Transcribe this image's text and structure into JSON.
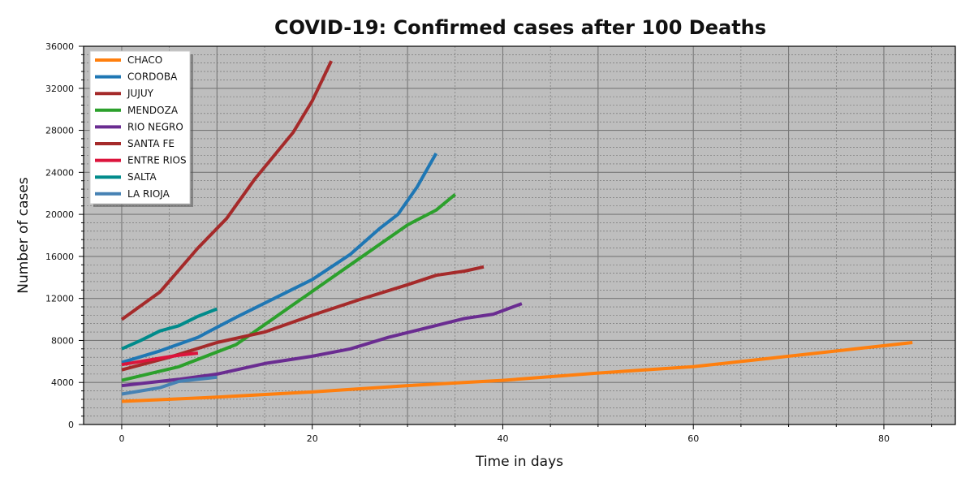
{
  "chart_data": {
    "type": "line",
    "title": "COVID-19: Confirmed cases after 100 Deaths",
    "xlabel": "Time in days",
    "ylabel": "Number of cases",
    "xlim": [
      -4,
      87.5
    ],
    "ylim": [
      0,
      36000
    ],
    "xticks": [
      0,
      20,
      40,
      60,
      80
    ],
    "yticks": [
      0,
      4000,
      8000,
      12000,
      16000,
      20000,
      24000,
      28000,
      32000,
      36000
    ],
    "grid": true,
    "legend_position": "top-left",
    "background": "#bebebe",
    "series": [
      {
        "name": "CHACO",
        "color": "#ff7f0e",
        "x": [
          0,
          10,
          20,
          30,
          40,
          50,
          60,
          70,
          78,
          83
        ],
        "y": [
          2200,
          2600,
          3100,
          3700,
          4200,
          4900,
          5500,
          6500,
          7300,
          7800
        ]
      },
      {
        "name": "CORDOBA",
        "color": "#1f77b4",
        "x": [
          0,
          4,
          8,
          12,
          16,
          20,
          24,
          27,
          29,
          31,
          33
        ],
        "y": [
          5900,
          7000,
          8300,
          10200,
          12000,
          13800,
          16200,
          18600,
          20000,
          22600,
          25800
        ]
      },
      {
        "name": "JUJUY",
        "color": "#a52a2a",
        "x": [
          0,
          4,
          8,
          11,
          14,
          16,
          18,
          20,
          22
        ],
        "y": [
          10000,
          12600,
          16800,
          19600,
          23400,
          25600,
          27800,
          30800,
          34600
        ]
      },
      {
        "name": "MENDOZA",
        "color": "#2ca02c",
        "x": [
          0,
          6,
          12,
          18,
          24,
          30,
          33,
          35
        ],
        "y": [
          4200,
          5500,
          7600,
          11400,
          15200,
          19000,
          20400,
          21900
        ]
      },
      {
        "name": "RIO NEGRO",
        "color": "#6a2c91",
        "x": [
          0,
          6,
          10,
          15,
          20,
          24,
          28,
          32,
          36,
          39,
          42
        ],
        "y": [
          3700,
          4300,
          4800,
          5800,
          6500,
          7200,
          8300,
          9200,
          10100,
          10500,
          11500
        ]
      },
      {
        "name": "SANTA FE",
        "color": "#a52a2a",
        "x": [
          0,
          5,
          10,
          15,
          20,
          25,
          30,
          33,
          36,
          38
        ],
        "y": [
          5200,
          6400,
          7800,
          8800,
          10400,
          11900,
          13300,
          14200,
          14600,
          15000
        ]
      },
      {
        "name": "ENTRE RIOS",
        "color": "#dc143c",
        "x": [
          0,
          2,
          4,
          6,
          8
        ],
        "y": [
          5700,
          6000,
          6300,
          6600,
          6800
        ]
      },
      {
        "name": "SALTA",
        "color": "#008b8b",
        "x": [
          0,
          2,
          4,
          6,
          8,
          10
        ],
        "y": [
          7200,
          8000,
          8900,
          9400,
          10300,
          11000
        ]
      },
      {
        "name": "LA RIOJA",
        "color": "#4682b4",
        "x": [
          0,
          2,
          4,
          6,
          8,
          10
        ],
        "y": [
          2900,
          3200,
          3500,
          4100,
          4300,
          4500
        ]
      }
    ]
  }
}
